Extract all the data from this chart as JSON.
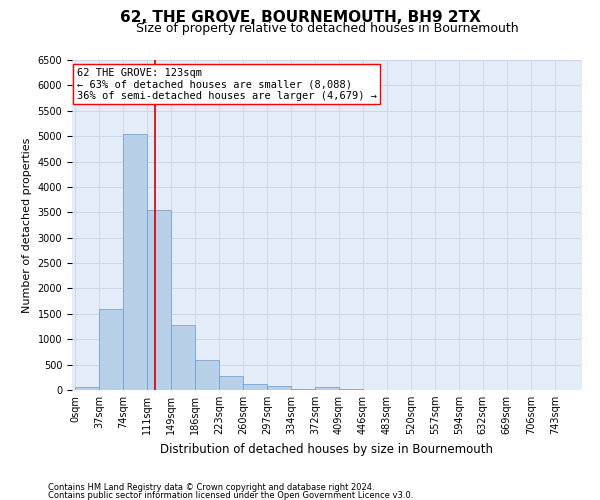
{
  "title": "62, THE GROVE, BOURNEMOUTH, BH9 2TX",
  "subtitle": "Size of property relative to detached houses in Bournemouth",
  "xlabel": "Distribution of detached houses by size in Bournemouth",
  "ylabel": "Number of detached properties",
  "footnote1": "Contains HM Land Registry data © Crown copyright and database right 2024.",
  "footnote2": "Contains public sector information licensed under the Open Government Licence v3.0.",
  "annotation_line1": "62 THE GROVE: 123sqm",
  "annotation_line2": "← 63% of detached houses are smaller (8,088)",
  "annotation_line3": "36% of semi-detached houses are larger (4,679) →",
  "property_size": 123,
  "bar_color": "#b8cfe8",
  "bar_edge_color": "#6699cc",
  "vline_color": "#cc0000",
  "categories": [
    "0sqm",
    "37sqm",
    "74sqm",
    "111sqm",
    "149sqm",
    "186sqm",
    "223sqm",
    "260sqm",
    "297sqm",
    "334sqm",
    "372sqm",
    "409sqm",
    "446sqm",
    "483sqm",
    "520sqm",
    "557sqm",
    "594sqm",
    "632sqm",
    "669sqm",
    "706sqm",
    "743sqm"
  ],
  "bin_edges": [
    0,
    37,
    74,
    111,
    148,
    185,
    222,
    259,
    296,
    333,
    370,
    407,
    444,
    481,
    518,
    555,
    592,
    629,
    666,
    703,
    740,
    777
  ],
  "values": [
    50,
    1600,
    5050,
    3550,
    1280,
    600,
    270,
    110,
    80,
    10,
    50,
    10,
    0,
    0,
    0,
    0,
    0,
    0,
    0,
    0,
    0
  ],
  "ylim": [
    0,
    6500
  ],
  "yticks": [
    0,
    500,
    1000,
    1500,
    2000,
    2500,
    3000,
    3500,
    4000,
    4500,
    5000,
    5500,
    6000,
    6500
  ],
  "background_color": "#ffffff",
  "grid_color": "#c8d4e8",
  "axes_bg_color": "#e4ecf8",
  "title_fontsize": 11,
  "subtitle_fontsize": 9,
  "ylabel_fontsize": 8,
  "xlabel_fontsize": 8.5,
  "tick_fontsize": 7,
  "footnote_fontsize": 6,
  "annotation_fontsize": 7.5
}
